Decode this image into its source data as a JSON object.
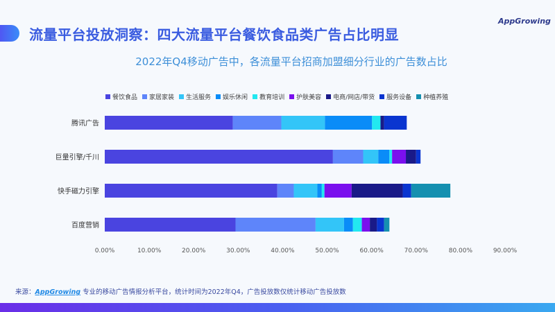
{
  "header": {
    "title": "流量平台投放洞察：四大流量平台餐饮食品类广告占比明显",
    "logo": "AppGrowing"
  },
  "chart_data": {
    "type": "bar",
    "orientation": "horizontal",
    "stacked": true,
    "title": "2022年Q4移动广告中，各流量平台招商加盟细分行业的广告数占比",
    "categories": [
      "腾讯广告",
      "巨量引擎/千川",
      "快手磁力引擎",
      "百度营销"
    ],
    "xlim": [
      0,
      90
    ],
    "xticks": [
      "0.00%",
      "10.00%",
      "20.00%",
      "30.00%",
      "40.00%",
      "50.00%",
      "60.00%",
      "70.00%",
      "80.00%",
      "90.00%"
    ],
    "legend_position": "top",
    "series": [
      {
        "name": "餐饮食品",
        "color": "#4a44e0",
        "values": [
          28.8,
          51.3,
          38.8,
          29.4
        ]
      },
      {
        "name": "家居家装",
        "color": "#5e85fa",
        "values": [
          10.9,
          6.8,
          3.7,
          18.0
        ]
      },
      {
        "name": "生活服务",
        "color": "#33c5f8",
        "values": [
          9.8,
          3.4,
          5.3,
          6.4
        ]
      },
      {
        "name": "娱乐休闲",
        "color": "#0a8cf8",
        "values": [
          10.6,
          2.5,
          1.0,
          2.0
        ]
      },
      {
        "name": "教育培训",
        "color": "#22e8f0",
        "values": [
          1.9,
          0.6,
          0.6,
          2.0
        ]
      },
      {
        "name": "护肤美容",
        "color": "#7a10ee",
        "values": [
          0,
          3.1,
          6.1,
          1.8
        ]
      },
      {
        "name": "电商/网店/带货",
        "color": "#1a1a88",
        "values": [
          0.8,
          2.3,
          11.5,
          1.6
        ]
      },
      {
        "name": "服务设备",
        "color": "#0a35d0",
        "values": [
          5.1,
          1.0,
          1.9,
          1.6
        ]
      },
      {
        "name": "种植养殖",
        "color": "#1590b0",
        "values": [
          0,
          0,
          8.8,
          1.2
        ]
      }
    ]
  },
  "footer": {
    "prefix": "来源：",
    "brand": "AppGrowing",
    "text": " 专业的移动广告情报分析平台，统计时间为2022年Q4，广告投放数仅统计移动广告投放数"
  }
}
